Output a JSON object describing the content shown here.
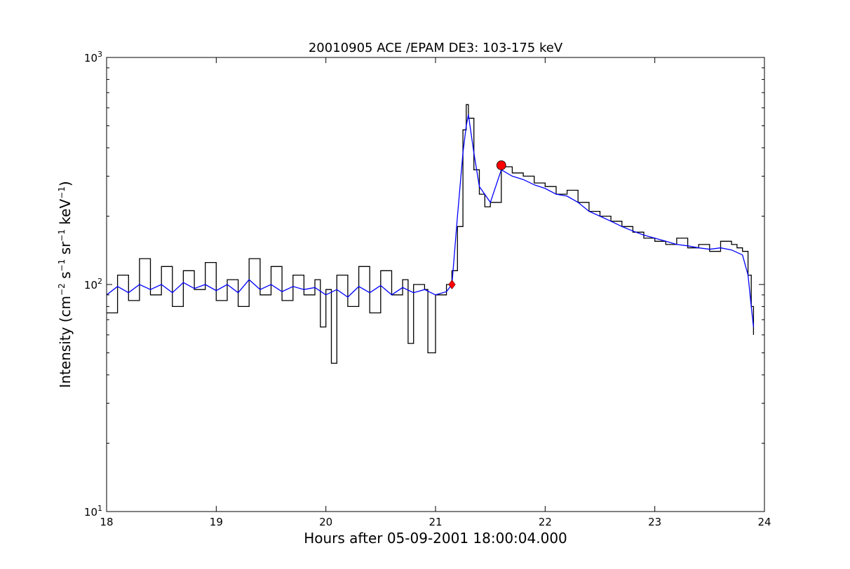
{
  "chart_data": {
    "type": "line",
    "title": "20010905 ACE /EPAM DE3: 103-175 keV",
    "xlabel": "Hours after 05-09-2001 18:00:04.000",
    "ylabel_parts": {
      "pre": "Intensity (cm",
      "sup1": "−2",
      "mid1": " s",
      "sup2": "−1",
      "mid2": " sr",
      "sup3": "−1",
      "mid3": " keV",
      "sup4": "−1",
      "post": ")"
    },
    "x_ticks": [
      "18",
      "19",
      "20",
      "21",
      "22",
      "23",
      "24"
    ],
    "y_ticks": [
      {
        "value": 10,
        "base": "10",
        "exp": "1"
      },
      {
        "value": 100,
        "base": "10",
        "exp": "2"
      },
      {
        "value": 1000,
        "base": "10",
        "exp": "3"
      }
    ],
    "xlim": [
      18,
      24
    ],
    "ylim": [
      10,
      1000
    ],
    "yscale": "log",
    "grid": false,
    "series": [
      {
        "color": "#000000",
        "style": "step",
        "x": [
          18.0,
          18.1,
          18.2,
          18.3,
          18.4,
          18.5,
          18.6,
          18.7,
          18.8,
          18.9,
          19.0,
          19.1,
          19.2,
          19.3,
          19.4,
          19.5,
          19.6,
          19.7,
          19.8,
          19.9,
          19.95,
          20.0,
          20.05,
          20.1,
          20.2,
          20.3,
          20.4,
          20.5,
          20.6,
          20.7,
          20.75,
          20.8,
          20.9,
          20.93,
          21.0,
          21.1,
          21.15,
          21.2,
          21.25,
          21.28,
          21.3,
          21.35,
          21.4,
          21.45,
          21.5,
          21.6,
          21.7,
          21.8,
          21.9,
          22.0,
          22.1,
          22.2,
          22.3,
          22.4,
          22.5,
          22.6,
          22.7,
          22.8,
          22.9,
          23.0,
          23.1,
          23.2,
          23.3,
          23.4,
          23.5,
          23.6,
          23.7,
          23.75,
          23.8,
          23.85,
          23.88,
          23.9
        ],
        "values": [
          75,
          110,
          85,
          130,
          90,
          120,
          80,
          115,
          95,
          125,
          85,
          105,
          80,
          130,
          90,
          120,
          85,
          110,
          90,
          105,
          65,
          95,
          45,
          110,
          80,
          120,
          75,
          115,
          90,
          105,
          55,
          100,
          95,
          50,
          90,
          100,
          115,
          180,
          480,
          620,
          540,
          320,
          250,
          220,
          230,
          330,
          310,
          300,
          280,
          270,
          250,
          260,
          230,
          210,
          200,
          190,
          180,
          170,
          160,
          155,
          150,
          160,
          145,
          150,
          140,
          155,
          150,
          145,
          140,
          110,
          80,
          60
        ]
      },
      {
        "color": "#0000ff",
        "style": "line",
        "x": [
          18.0,
          18.1,
          18.2,
          18.3,
          18.4,
          18.5,
          18.6,
          18.7,
          18.8,
          18.9,
          19.0,
          19.1,
          19.2,
          19.3,
          19.4,
          19.5,
          19.6,
          19.7,
          19.8,
          19.9,
          20.0,
          20.1,
          20.2,
          20.3,
          20.4,
          20.5,
          20.6,
          20.7,
          20.8,
          20.9,
          21.0,
          21.1,
          21.15,
          21.2,
          21.25,
          21.28,
          21.3,
          21.35,
          21.4,
          21.5,
          21.6,
          21.7,
          21.8,
          21.9,
          22.0,
          22.1,
          22.2,
          22.3,
          22.4,
          22.5,
          22.6,
          22.7,
          22.8,
          22.9,
          23.0,
          23.1,
          23.2,
          23.3,
          23.4,
          23.5,
          23.6,
          23.7,
          23.8,
          23.85,
          23.88,
          23.9
        ],
        "values": [
          90,
          98,
          92,
          100,
          95,
          100,
          92,
          102,
          96,
          100,
          94,
          100,
          92,
          105,
          95,
          100,
          93,
          98,
          95,
          97,
          90,
          95,
          88,
          98,
          92,
          99,
          90,
          97,
          92,
          95,
          90,
          93,
          100,
          200,
          380,
          500,
          560,
          380,
          270,
          230,
          320,
          300,
          290,
          275,
          265,
          250,
          245,
          230,
          210,
          200,
          190,
          180,
          172,
          165,
          160,
          155,
          150,
          148,
          145,
          143,
          145,
          142,
          135,
          110,
          80,
          65
        ]
      }
    ],
    "markers": [
      {
        "shape": "diamond",
        "x": 21.15,
        "y": 100,
        "color": "#ff0000"
      },
      {
        "shape": "circle",
        "x": 21.6,
        "y": 335,
        "color": "#ff0000"
      }
    ]
  }
}
